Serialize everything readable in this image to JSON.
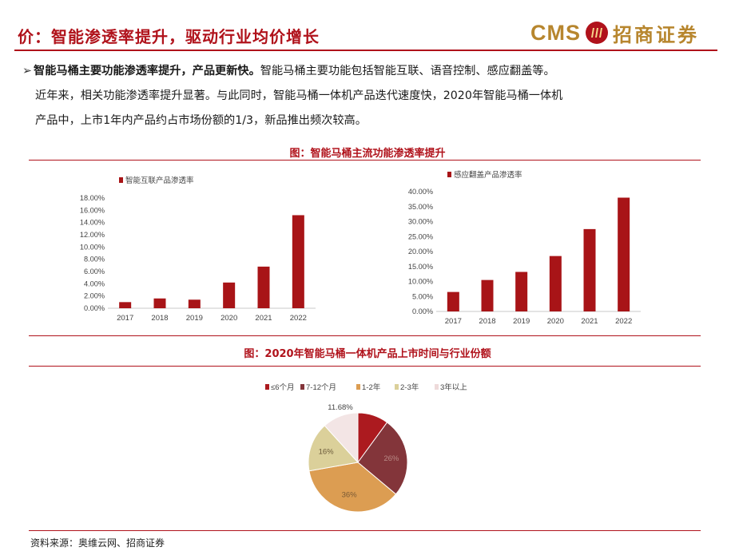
{
  "header": {
    "title": "价：智能渗透率提升，驱动行业均价增长",
    "logo_text_en": "CMS",
    "logo_text_cn": "招商证券"
  },
  "paragraph": {
    "lead": "智能马桶主要功能渗透率提升，产品更新快。",
    "line1_rest": "智能马桶主要功能包括智能互联、语音控制、感应翻盖等。",
    "line2": "近年来，相关功能渗透率提升显著。与此同时，智能马桶一体机产品迭代速度快，2020年智能马桶一体机",
    "line3": "产品中，上市1年内产品约占市场份额的1/3，新品推出频次较高。"
  },
  "figure1": {
    "title": "图：智能马桶主流功能渗透率提升"
  },
  "figure2": {
    "title": "图：2020年智能马桶一体机产品上市时间与行业份额"
  },
  "source": "资料来源：奥维云网、招商证券",
  "colors": {
    "accent": "#b0121b",
    "bar": "#a81417",
    "gold": "#b7862e"
  },
  "chart_data": [
    {
      "type": "bar",
      "categories": [
        "2017",
        "2018",
        "2019",
        "2020",
        "2021",
        "2022"
      ],
      "series": [
        {
          "name": "智能互联产品渗透率",
          "values": [
            1.0,
            1.6,
            1.4,
            4.2,
            6.8,
            15.2
          ]
        }
      ],
      "ylim": [
        0,
        18
      ],
      "yticks": [
        "0.00%",
        "2.00%",
        "4.00%",
        "6.00%",
        "8.00%",
        "10.00%",
        "12.00%",
        "14.00%",
        "16.00%",
        "18.00%"
      ],
      "legend": "top-left"
    },
    {
      "type": "bar",
      "categories": [
        "2017",
        "2018",
        "2019",
        "2020",
        "2021",
        "2022"
      ],
      "series": [
        {
          "name": "感应翻盖产品渗透率",
          "values": [
            6.5,
            10.5,
            13.2,
            18.5,
            27.5,
            38.0
          ]
        }
      ],
      "ylim": [
        0,
        40
      ],
      "yticks": [
        "0.00%",
        "5.00%",
        "10.00%",
        "15.00%",
        "20.00%",
        "25.00%",
        "30.00%",
        "35.00%",
        "40.00%"
      ],
      "legend": "top-left"
    },
    {
      "type": "pie",
      "categories": [
        "≤6个月",
        "7-12个月",
        "1-2年",
        "2-3年",
        "3年以上"
      ],
      "values": [
        10,
        26,
        36,
        16,
        11.68
      ],
      "labels": [
        "",
        "26%",
        "36%",
        "16%",
        "11.68%"
      ],
      "colors": [
        "#ac1a1f",
        "#83353a",
        "#dc9d52",
        "#dbd09a",
        "#f3e5e5"
      ],
      "legend": "top"
    }
  ]
}
